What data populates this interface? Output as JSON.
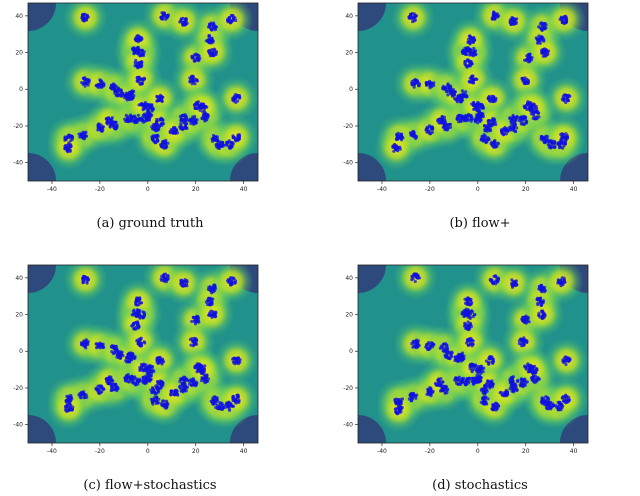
{
  "colors": {
    "field_low": "#3b0f70",
    "field_mid": "#21918c",
    "field_high": "#fde725",
    "points": "#1010e0",
    "frame": "#222222"
  },
  "chart_data": [
    {
      "type": "scatter",
      "title": "",
      "caption": "(a) ground truth",
      "background": "density heatmap (viridis), bright yellow near clusters",
      "xlim": [
        -50,
        46
      ],
      "ylim": [
        -50,
        47
      ],
      "xticks": [
        -40,
        -20,
        0,
        20,
        40
      ],
      "yticks": [
        -40,
        -20,
        0,
        20,
        40
      ],
      "xlabel": "",
      "ylabel": "",
      "clusters": [
        [
          -26,
          39
        ],
        [
          -14,
          -20
        ],
        [
          -27,
          -25
        ],
        [
          -20,
          -21
        ],
        [
          -33,
          -27
        ],
        [
          -33,
          -32
        ],
        [
          -26,
          4
        ],
        [
          -20,
          3
        ],
        [
          -14,
          1
        ],
        [
          -12,
          -2
        ],
        [
          -7,
          -3
        ],
        [
          -8,
          -4
        ],
        [
          -16,
          -17
        ],
        [
          -8,
          -16
        ],
        [
          -5,
          -16
        ],
        [
          -1,
          -16
        ],
        [
          0,
          -15
        ],
        [
          1,
          -10
        ],
        [
          -2,
          -9
        ],
        [
          -5,
          21
        ],
        [
          -3,
          20
        ],
        [
          -4,
          27
        ],
        [
          -4,
          14
        ],
        [
          -3,
          5
        ],
        [
          7,
          40
        ],
        [
          5,
          -5
        ],
        [
          3,
          -21
        ],
        [
          3,
          -27
        ],
        [
          5,
          -18
        ],
        [
          7,
          -30
        ],
        [
          15,
          -20
        ],
        [
          15,
          -16
        ],
        [
          11,
          -23
        ],
        [
          20,
          17
        ],
        [
          19,
          5
        ],
        [
          19,
          -17
        ],
        [
          15,
          37
        ],
        [
          24,
          -15
        ],
        [
          21,
          -9
        ],
        [
          23,
          -10
        ],
        [
          27,
          34
        ],
        [
          26,
          27
        ],
        [
          27,
          20
        ],
        [
          28,
          -27
        ],
        [
          30,
          -30
        ],
        [
          34,
          -30
        ],
        [
          37,
          -26
        ],
        [
          37,
          -5
        ],
        [
          35,
          38
        ]
      ]
    },
    {
      "type": "scatter",
      "title": "",
      "caption": "(b) flow+",
      "background": "density heatmap (viridis), bright yellow near clusters",
      "xlim": [
        -50,
        46
      ],
      "ylim": [
        -50,
        47
      ],
      "xticks": [
        -40,
        -20,
        0,
        20,
        40
      ],
      "yticks": [
        -40,
        -20,
        0,
        20,
        40
      ],
      "xlabel": "",
      "ylabel": "",
      "clusters": [
        [
          -27,
          39
        ],
        [
          -13,
          -20
        ],
        [
          -27,
          -25
        ],
        [
          -20,
          -22
        ],
        [
          -33,
          -26
        ],
        [
          -34,
          -32
        ],
        [
          -26,
          3
        ],
        [
          -20,
          3
        ],
        [
          -13,
          1
        ],
        [
          -11,
          -2
        ],
        [
          -6,
          -3
        ],
        [
          -8,
          -5
        ],
        [
          -15,
          -17
        ],
        [
          -7,
          -16
        ],
        [
          -4,
          -16
        ],
        [
          0,
          -16
        ],
        [
          1,
          -14
        ],
        [
          1,
          -10
        ],
        [
          -1,
          -9
        ],
        [
          -5,
          21
        ],
        [
          -2,
          20
        ],
        [
          -3,
          27
        ],
        [
          -4,
          14
        ],
        [
          -2,
          5
        ],
        [
          7,
          40
        ],
        [
          6,
          -5
        ],
        [
          4,
          -21
        ],
        [
          3,
          -27
        ],
        [
          6,
          -18
        ],
        [
          7,
          -30
        ],
        [
          15,
          -21
        ],
        [
          15,
          -16
        ],
        [
          11,
          -23
        ],
        [
          21,
          17
        ],
        [
          20,
          5
        ],
        [
          19,
          -17
        ],
        [
          15,
          37
        ],
        [
          24,
          -14
        ],
        [
          21,
          -9
        ],
        [
          23,
          -10
        ],
        [
          27,
          34
        ],
        [
          26,
          27
        ],
        [
          28,
          20
        ],
        [
          28,
          -27
        ],
        [
          31,
          -30
        ],
        [
          35,
          -30
        ],
        [
          36,
          -26
        ],
        [
          37,
          -5
        ],
        [
          36,
          38
        ]
      ]
    },
    {
      "type": "scatter",
      "title": "",
      "caption": "(c) flow+stochastics",
      "background": "density heatmap (viridis), bright yellow near clusters",
      "xlim": [
        -50,
        46
      ],
      "ylim": [
        -50,
        47
      ],
      "xticks": [
        -40,
        -20,
        0,
        20,
        40
      ],
      "yticks": [
        -40,
        -20,
        0,
        20,
        40
      ],
      "xlabel": "",
      "ylabel": "",
      "clusters": [
        [
          -26,
          39
        ],
        [
          -14,
          -20
        ],
        [
          -27,
          -24
        ],
        [
          -20,
          -21
        ],
        [
          -33,
          -26
        ],
        [
          -33,
          -31
        ],
        [
          -26,
          4
        ],
        [
          -20,
          3
        ],
        [
          -14,
          1
        ],
        [
          -12,
          -2
        ],
        [
          -7,
          -3
        ],
        [
          -8,
          -4
        ],
        [
          -16,
          -16
        ],
        [
          -8,
          -15
        ],
        [
          -5,
          -16
        ],
        [
          -1,
          -16
        ],
        [
          0,
          -14
        ],
        [
          1,
          -10
        ],
        [
          -2,
          -9
        ],
        [
          -5,
          21
        ],
        [
          -3,
          20
        ],
        [
          -4,
          27
        ],
        [
          -5,
          14
        ],
        [
          -3,
          5
        ],
        [
          7,
          40
        ],
        [
          5,
          -5
        ],
        [
          3,
          -21
        ],
        [
          3,
          -27
        ],
        [
          5,
          -18
        ],
        [
          7,
          -29
        ],
        [
          15,
          -20
        ],
        [
          15,
          -16
        ],
        [
          11,
          -23
        ],
        [
          20,
          17
        ],
        [
          19,
          5
        ],
        [
          19,
          -17
        ],
        [
          15,
          37
        ],
        [
          24,
          -15
        ],
        [
          21,
          -9
        ],
        [
          23,
          -10
        ],
        [
          27,
          34
        ],
        [
          26,
          27
        ],
        [
          27,
          20
        ],
        [
          28,
          -27
        ],
        [
          30,
          -30
        ],
        [
          34,
          -30
        ],
        [
          37,
          -26
        ],
        [
          37,
          -5
        ],
        [
          35,
          38
        ]
      ]
    },
    {
      "type": "scatter",
      "title": "",
      "caption": "(d) stochastics",
      "background": "density heatmap (viridis), bright yellow near clusters",
      "xlim": [
        -50,
        46
      ],
      "ylim": [
        -50,
        47
      ],
      "xticks": [
        -40,
        -20,
        0,
        20,
        40
      ],
      "yticks": [
        -40,
        -20,
        0,
        20,
        40
      ],
      "xlabel": "",
      "ylabel": "",
      "clusters": [
        [
          -26,
          40
        ],
        [
          -14,
          -21
        ],
        [
          -27,
          -25
        ],
        [
          -20,
          -22
        ],
        [
          -33,
          -27
        ],
        [
          -33,
          -32
        ],
        [
          -26,
          4
        ],
        [
          -20,
          3
        ],
        [
          -14,
          2
        ],
        [
          -12,
          -2
        ],
        [
          -7,
          -3
        ],
        [
          -8,
          -4
        ],
        [
          -16,
          -17
        ],
        [
          -8,
          -16
        ],
        [
          -5,
          -16
        ],
        [
          -1,
          -16
        ],
        [
          0,
          -15
        ],
        [
          1,
          -10
        ],
        [
          -2,
          -9
        ],
        [
          -5,
          21
        ],
        [
          -3,
          20
        ],
        [
          -4,
          27
        ],
        [
          -4,
          14
        ],
        [
          -3,
          5
        ],
        [
          7,
          39
        ],
        [
          5,
          -5
        ],
        [
          3,
          -21
        ],
        [
          3,
          -27
        ],
        [
          5,
          -18
        ],
        [
          7,
          -30
        ],
        [
          15,
          -20
        ],
        [
          15,
          -16
        ],
        [
          11,
          -23
        ],
        [
          20,
          17
        ],
        [
          19,
          5
        ],
        [
          19,
          -17
        ],
        [
          15,
          37
        ],
        [
          24,
          -15
        ],
        [
          21,
          -9
        ],
        [
          23,
          -10
        ],
        [
          27,
          34
        ],
        [
          26,
          27
        ],
        [
          27,
          20
        ],
        [
          28,
          -27
        ],
        [
          30,
          -30
        ],
        [
          34,
          -30
        ],
        [
          37,
          -26
        ],
        [
          37,
          -5
        ],
        [
          35,
          38
        ]
      ]
    }
  ]
}
